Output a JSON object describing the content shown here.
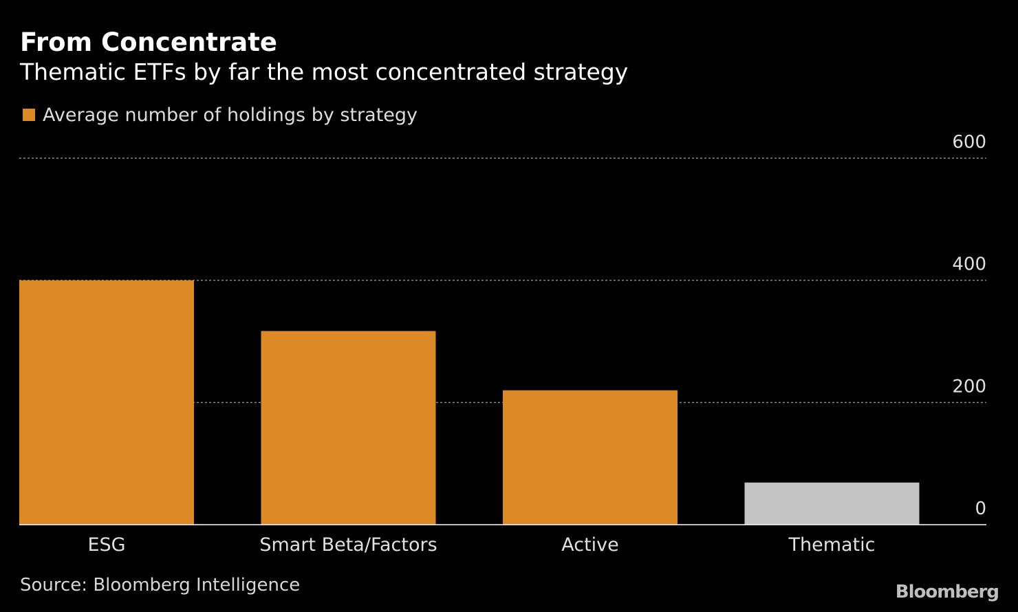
{
  "colors": {
    "background": "#000000",
    "primary_bar": "#DC8A26",
    "highlight_bar": "#C4C4C4",
    "gridline": "#8A8A8A",
    "text": "#FFFFFF",
    "tick_text": "#E0E0E0"
  },
  "header": {
    "title": "From Concentrate",
    "subtitle": "Thematic ETFs by far the most concentrated strategy"
  },
  "legend": {
    "label": "Average number of holdings by strategy"
  },
  "footer": {
    "source": "Source: Bloomberg Intelligence",
    "brand": "Bloomberg"
  },
  "chart_data": {
    "type": "bar",
    "categories": [
      "ESG",
      "Smart Beta/Factors",
      "Active",
      "Thematic"
    ],
    "series": [
      {
        "name": "Average number of holdings by strategy",
        "values": [
          400,
          317,
          220,
          69
        ]
      }
    ],
    "highlighted_categories": [
      "Thematic"
    ],
    "ylim": [
      0,
      600
    ],
    "yticks": [
      0,
      200,
      400,
      600
    ],
    "y_axis_side": "right",
    "grid": true,
    "legend_position": "top-left"
  }
}
